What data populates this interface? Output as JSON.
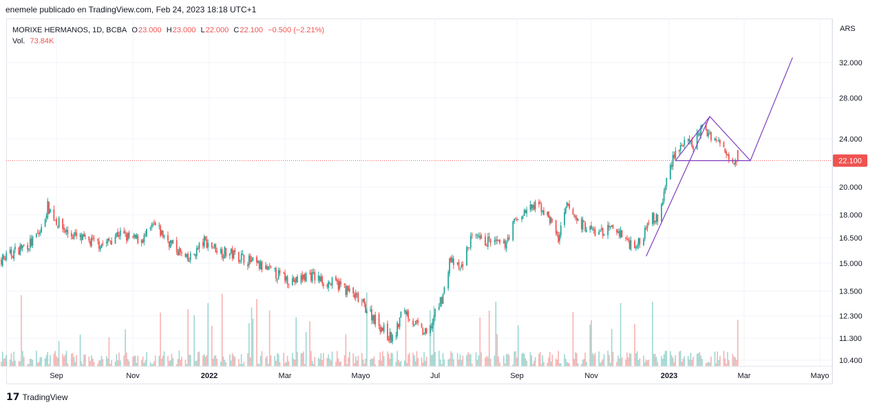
{
  "header": {
    "published_line": "enemele publicado en TradingView.com, Feb 24, 2023 18:18 UTC+1"
  },
  "legend": {
    "symbol": "MORIXE HERMANOS, 1D, BCBA",
    "o_label": "O",
    "o_value": "23.000",
    "h_label": "H",
    "h_value": "23.000",
    "l_label": "L",
    "l_value": "22.000",
    "c_label": "C",
    "c_value": "22.100",
    "change": "−0.500 (−2.21%)",
    "vol_label": "Vol.",
    "vol_value": "73.84K"
  },
  "footer": {
    "brand_glyph": "𝟭𝟳",
    "brand_text": "TradingView"
  },
  "colors": {
    "up": "#26a69a",
    "down": "#ef5350",
    "drawing": "#7e3fbf",
    "price_line": "#ef5350"
  },
  "chart_data": {
    "type": "candlestick",
    "symbol": "MORIXE HERMANOS",
    "interval": "1D",
    "exchange": "BCBA",
    "currency": "ARS",
    "scale": "log",
    "last_price": 22.1,
    "last_price_label": "22.100",
    "y_ticks": [
      32.0,
      28.0,
      24.0,
      20.0,
      18.0,
      16.5,
      15.0,
      13.5,
      12.3,
      11.3,
      10.4
    ],
    "y_tick_labels": [
      "32.000",
      "28.000",
      "24.000",
      "20.000",
      "18.000",
      "16.500",
      "15.000",
      "13.500",
      "12.300",
      "11.300",
      "10.400"
    ],
    "x_ticks": [
      "2021-09-01",
      "2021-11-01",
      "2022-01-01",
      "2022-03-01",
      "2022-05-01",
      "2022-07-01",
      "2022-09-01",
      "2022-11-01",
      "2023-01-01",
      "2023-03-01",
      "2023-05-01"
    ],
    "x_tick_labels": [
      "Sep",
      "Nov",
      "2022",
      "Mar",
      "Mayo",
      "Jul",
      "Sep",
      "Nov",
      "2023",
      "Mar",
      "Mayo"
    ],
    "x_range": [
      "2021-07-08",
      "2023-05-20"
    ],
    "y_range": [
      10.15,
      36.0
    ],
    "price_path": [
      [
        "2021-07-08",
        15.5
      ],
      [
        "2021-07-20",
        15.2
      ],
      [
        "2021-08-01",
        15.8
      ],
      [
        "2021-08-12",
        16.2
      ],
      [
        "2021-08-20",
        17.0
      ],
      [
        "2021-08-25",
        18.6
      ],
      [
        "2021-09-01",
        17.6
      ],
      [
        "2021-09-10",
        16.8
      ],
      [
        "2021-09-25",
        16.3
      ],
      [
        "2021-10-10",
        16.1
      ],
      [
        "2021-10-20",
        16.8
      ],
      [
        "2021-11-01",
        16.4
      ],
      [
        "2021-11-10",
        16.5
      ],
      [
        "2021-11-18",
        17.3
      ],
      [
        "2021-12-01",
        16.2
      ],
      [
        "2021-12-15",
        15.1
      ],
      [
        "2021-12-28",
        16.3
      ],
      [
        "2022-01-10",
        15.7
      ],
      [
        "2022-01-25",
        15.4
      ],
      [
        "2022-02-10",
        14.8
      ],
      [
        "2022-02-25",
        14.3
      ],
      [
        "2022-03-10",
        14.0
      ],
      [
        "2022-03-20",
        14.4
      ],
      [
        "2022-04-01",
        14.0
      ],
      [
        "2022-04-15",
        13.8
      ],
      [
        "2022-04-25",
        13.3
      ],
      [
        "2022-05-05",
        12.7
      ],
      [
        "2022-05-15",
        12.0
      ],
      [
        "2022-05-22",
        11.5
      ],
      [
        "2022-05-28",
        11.2
      ],
      [
        "2022-06-05",
        12.7
      ],
      [
        "2022-06-12",
        12.1
      ],
      [
        "2022-06-20",
        11.6
      ],
      [
        "2022-06-25",
        11.4
      ],
      [
        "2022-06-30",
        12.2
      ],
      [
        "2022-07-08",
        13.5
      ],
      [
        "2022-07-12",
        15.2
      ],
      [
        "2022-07-20",
        14.6
      ],
      [
        "2022-07-28",
        16.4
      ],
      [
        "2022-08-10",
        16.3
      ],
      [
        "2022-08-22",
        16.0
      ],
      [
        "2022-08-30",
        17.5
      ],
      [
        "2022-09-10",
        18.4
      ],
      [
        "2022-09-20",
        18.6
      ],
      [
        "2022-09-30",
        17.5
      ],
      [
        "2022-10-05",
        16.4
      ],
      [
        "2022-10-12",
        18.6
      ],
      [
        "2022-10-22",
        17.5
      ],
      [
        "2022-11-05",
        16.8
      ],
      [
        "2022-11-20",
        17.1
      ],
      [
        "2022-12-01",
        16.2
      ],
      [
        "2022-12-10",
        16.1
      ],
      [
        "2022-12-15",
        17.8
      ],
      [
        "2022-12-24",
        17.7
      ],
      [
        "2022-12-30",
        20.5
      ],
      [
        "2023-01-05",
        22.8
      ],
      [
        "2023-01-12",
        23.5
      ],
      [
        "2023-01-20",
        23.4
      ],
      [
        "2023-01-26",
        24.9
      ],
      [
        "2023-02-02",
        24.5
      ],
      [
        "2023-02-10",
        23.5
      ],
      [
        "2023-02-17",
        22.6
      ],
      [
        "2023-02-24",
        22.1
      ]
    ],
    "volume_scale_max": 120000,
    "drawing": {
      "points": [
        [
          "2022-12-14",
          15.4
        ],
        [
          "2023-02-02",
          26.1
        ],
        [
          "2023-03-06",
          22.1
        ],
        [
          "2023-01-06",
          22.1
        ],
        [
          "2023-02-02",
          26.1
        ],
        [
          "2023-03-06",
          22.1
        ],
        [
          "2023-04-09",
          32.6
        ]
      ]
    }
  }
}
